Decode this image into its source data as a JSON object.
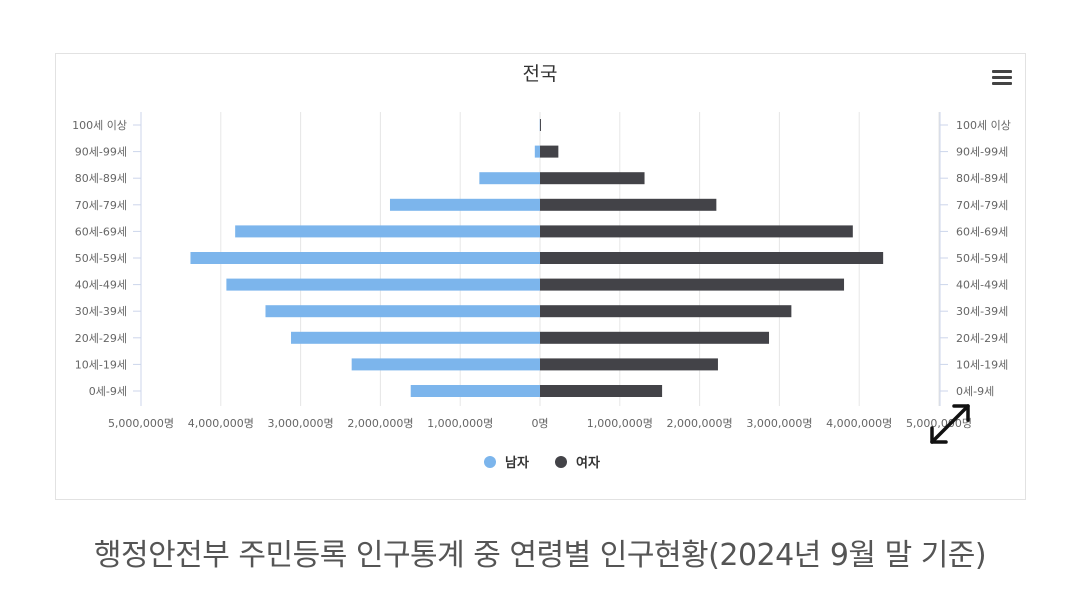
{
  "caption": "행정안전부 주민등록 인구통계 중 연령별 인구현황(2024년 9월 말 기준)",
  "icons": {
    "menu": "hamburger-menu-icon",
    "expand": "expand-arrows-icon"
  },
  "colors": {
    "male": "#7cb5ec",
    "female": "#434348",
    "grid": "#e6e6e6"
  },
  "chart_data": {
    "type": "bar",
    "orientation": "horizontal",
    "subtype": "population-pyramid",
    "title": "전국",
    "categories": [
      "100세 이상",
      "90세-99세",
      "80세-89세",
      "70세-79세",
      "60세-69세",
      "50세-59세",
      "40세-49세",
      "30세-39세",
      "20세-29세",
      "10세-19세",
      "0세-9세"
    ],
    "series": [
      {
        "name": "남자",
        "color": "#7cb5ec",
        "side": "left",
        "values": [
          3000,
          65000,
          760000,
          1880000,
          3820000,
          4380000,
          3930000,
          3440000,
          3120000,
          2360000,
          1620000
        ]
      },
      {
        "name": "여자",
        "color": "#434348",
        "side": "right",
        "values": [
          12000,
          230000,
          1310000,
          2210000,
          3920000,
          4300000,
          3810000,
          3150000,
          2870000,
          2230000,
          1530000
        ]
      }
    ],
    "x_ticks": [
      "5,000,000명",
      "4,000,000명",
      "3,000,000명",
      "2,000,000명",
      "1,000,000명",
      "0명",
      "1,000,000명",
      "2,000,000명",
      "3,000,000명",
      "4,000,000명",
      "5,000,000명"
    ],
    "xlim": [
      -5000000,
      5000000
    ],
    "grid": true,
    "legend": "bottom-center"
  }
}
